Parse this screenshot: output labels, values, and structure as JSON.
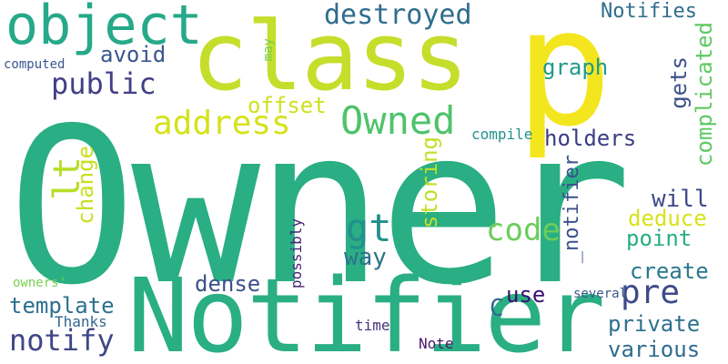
{
  "words": {
    "owner": {
      "text": "Owner",
      "color": "#2aae83"
    },
    "notifier": {
      "text": "Notifier",
      "color": "#2aae83"
    },
    "class": {
      "text": "class",
      "color": "#c5de2c"
    },
    "p": {
      "text": "p",
      "color": "#f4e61e"
    },
    "object": {
      "text": "object",
      "color": "#25a989"
    },
    "owned": {
      "text": "Owned",
      "color": "#4fc36b"
    },
    "address": {
      "text": "address",
      "color": "#d5e21a"
    },
    "destroyed": {
      "text": "destroyed",
      "color": "#2f6d8e"
    },
    "notifies": {
      "text": "Notifies",
      "color": "#2f6d8e"
    },
    "public": {
      "text": "public",
      "color": "#433f86"
    },
    "avoid": {
      "text": "avoid",
      "color": "#39578c"
    },
    "computed": {
      "text": "computed",
      "color": "#39568c"
    },
    "may": {
      "text": "may",
      "color": "#75cf4f"
    },
    "graph": {
      "text": "graph",
      "color": "#1f9a8a"
    },
    "gets": {
      "text": "gets",
      "color": "#3b528b"
    },
    "complicated": {
      "text": "complicated",
      "color": "#5ec962"
    },
    "offset": {
      "text": "offset",
      "color": "#cfe11c"
    },
    "lt": {
      "text": "lt",
      "color": "#b8de29"
    },
    "change": {
      "text": "change",
      "color": "#c8e020"
    },
    "compile": {
      "text": "compile",
      "color": "#21918c"
    },
    "holders": {
      "text": "holders",
      "color": "#3b3c85"
    },
    "storing": {
      "text": "storing",
      "color": "#bfe02a"
    },
    "notifier_v": {
      "text": "_notifier",
      "color": "#3b518b"
    },
    "will": {
      "text": "will",
      "color": "#3e4989"
    },
    "deduce": {
      "text": "deduce",
      "color": "#d8e219"
    },
    "point": {
      "text": "point",
      "color": "#28ae80"
    },
    "gt": {
      "text": "gt",
      "color": "#21918c"
    },
    "code": {
      "text": "code",
      "color": "#6ccd5a"
    },
    "way": {
      "text": "way",
      "color": "#2c728e"
    },
    "create": {
      "text": "create",
      "color": "#2a788e"
    },
    "dense": {
      "text": "dense",
      "color": "#3b518b"
    },
    "possibly": {
      "text": "possibly",
      "color": "#482475"
    },
    "owners": {
      "text": "owners'",
      "color": "#7ad151"
    },
    "template": {
      "text": "template",
      "color": "#2d708e"
    },
    "use": {
      "text": "use",
      "color": "#3b0f70"
    },
    "pre": {
      "text": "pre",
      "color": "#3e4a89"
    },
    "several": {
      "text": "several",
      "color": "#38588c"
    },
    "thanks": {
      "text": "Thanks",
      "color": "#31688e"
    },
    "c": {
      "text": "C",
      "color": "#31688e"
    },
    "private": {
      "text": "private",
      "color": "#2c718e"
    },
    "notify": {
      "text": "notify",
      "color": "#3f4788"
    },
    "time": {
      "text": "time",
      "color": "#46327e"
    },
    "note": {
      "text": "Note",
      "color": "#481668"
    },
    "various": {
      "text": "various",
      "color": "#2f6c8e"
    }
  }
}
